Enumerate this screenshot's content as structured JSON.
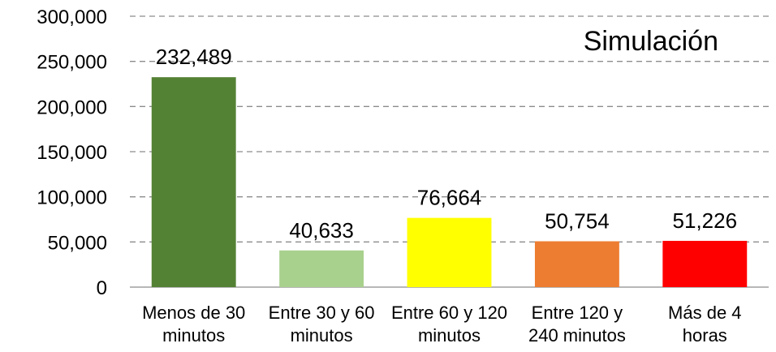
{
  "chart_data": {
    "type": "bar",
    "title": "Simulación",
    "categories": [
      [
        "Menos de 30",
        "minutos"
      ],
      [
        "Entre 30 y 60",
        "minutos"
      ],
      [
        "Entre 60 y 120",
        "minutos"
      ],
      [
        "Entre 120 y",
        "240 minutos"
      ],
      [
        "Más de 4",
        "horas"
      ]
    ],
    "values": [
      232489,
      40633,
      76664,
      50754,
      51226
    ],
    "value_labels": [
      "232,489",
      "40,633",
      "76,664",
      "50,754",
      "51,226"
    ],
    "colors": [
      "#548235",
      "#a9d18e",
      "#ffff00",
      "#ed7d31",
      "#ff0000"
    ],
    "ylim": [
      0,
      300000
    ],
    "yticks": [
      0,
      50000,
      100000,
      150000,
      200000,
      250000,
      300000
    ],
    "ytick_labels": [
      "0",
      "50,000",
      "100,000",
      "150,000",
      "200,000",
      "250,000",
      "300,000"
    ],
    "xlabel": "",
    "ylabel": "",
    "grid": true,
    "legend": false
  }
}
